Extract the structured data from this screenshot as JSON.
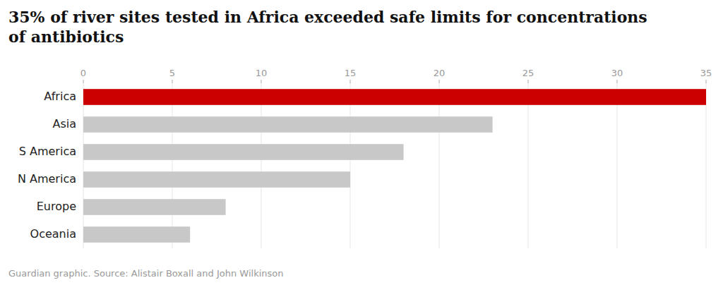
{
  "chart_data": {
    "type": "bar",
    "orientation": "horizontal",
    "title": "35% of river sites tested in Africa exceeded safe limits for concentrations\nof antibiotics",
    "categories": [
      "Africa",
      "Asia",
      "S America",
      "N America",
      "Europe",
      "Oceania"
    ],
    "values": [
      35,
      23,
      18,
      15,
      8,
      6
    ],
    "colors": [
      "#cc0000",
      "#c8c8c8",
      "#c8c8c8",
      "#c8c8c8",
      "#c8c8c8",
      "#c8c8c8"
    ],
    "xlim": [
      0,
      35
    ],
    "xticks": [
      0,
      5,
      10,
      15,
      20,
      25,
      30,
      35
    ],
    "grid": true,
    "annotations": [
      "Guardian graphic. Source: Alistair Boxall and John Wilkinson"
    ]
  }
}
